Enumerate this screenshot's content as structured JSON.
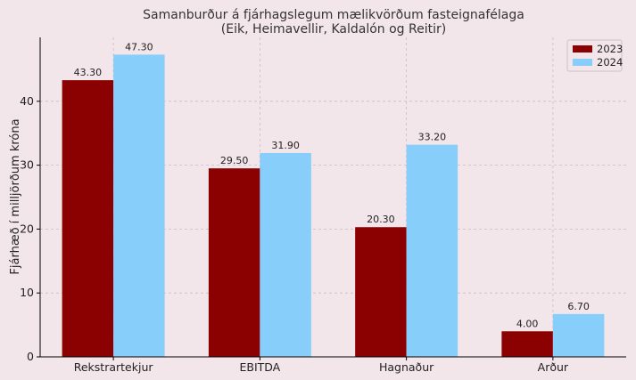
{
  "chart_data": {
    "type": "bar",
    "title": "Samanburður á fjárhagslegum mælikvörðum fasteignafélaga",
    "subtitle": "(Eik, Heimavellir, Kaldalón og Reitir)",
    "xlabel": "",
    "ylabel": "Fjárhæð í milljörðum króna",
    "categories": [
      "Rekstrartekjur",
      "EBITDA",
      "Hagnaður",
      "Arður"
    ],
    "series": [
      {
        "name": "2023",
        "values": [
          43.3,
          29.5,
          20.3,
          4.0
        ],
        "value_labels": [
          "43.30",
          "29.50",
          "20.30",
          "4.00"
        ],
        "color": "#8b0000"
      },
      {
        "name": "2024",
        "values": [
          47.3,
          31.9,
          33.2,
          6.7
        ],
        "value_labels": [
          "47.30",
          "31.90",
          "33.20",
          "6.70"
        ],
        "color": "#87cefa"
      }
    ],
    "ylim": [
      0,
      50
    ],
    "yticks": [
      0,
      10,
      20,
      30,
      40
    ],
    "ytick_labels": [
      "0",
      "10",
      "20",
      "30",
      "40"
    ],
    "grid": true,
    "legend_position": "top-right",
    "background_color": "#f3e6ea"
  }
}
